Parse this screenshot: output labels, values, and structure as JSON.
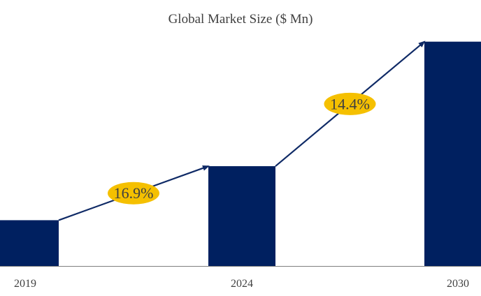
{
  "colors": {
    "bar": "#002060",
    "arrow": "#0f2a66",
    "badge": "#f5c000",
    "axis": "#7f7f7f",
    "text": "#404040"
  },
  "chart_data": {
    "type": "bar",
    "title": "Global Market Size ($ Mn)",
    "xlabel": "",
    "ylabel": "",
    "categories": [
      "2019",
      "2024",
      "2030"
    ],
    "values": [
      100,
      218,
      490
    ],
    "ylim": [
      0,
      520
    ],
    "grid": false,
    "annotations": [
      {
        "text": "16.9%",
        "from": "2019",
        "to": "2024"
      },
      {
        "text": "14.4%",
        "from": "2024",
        "to": "2030"
      }
    ]
  }
}
